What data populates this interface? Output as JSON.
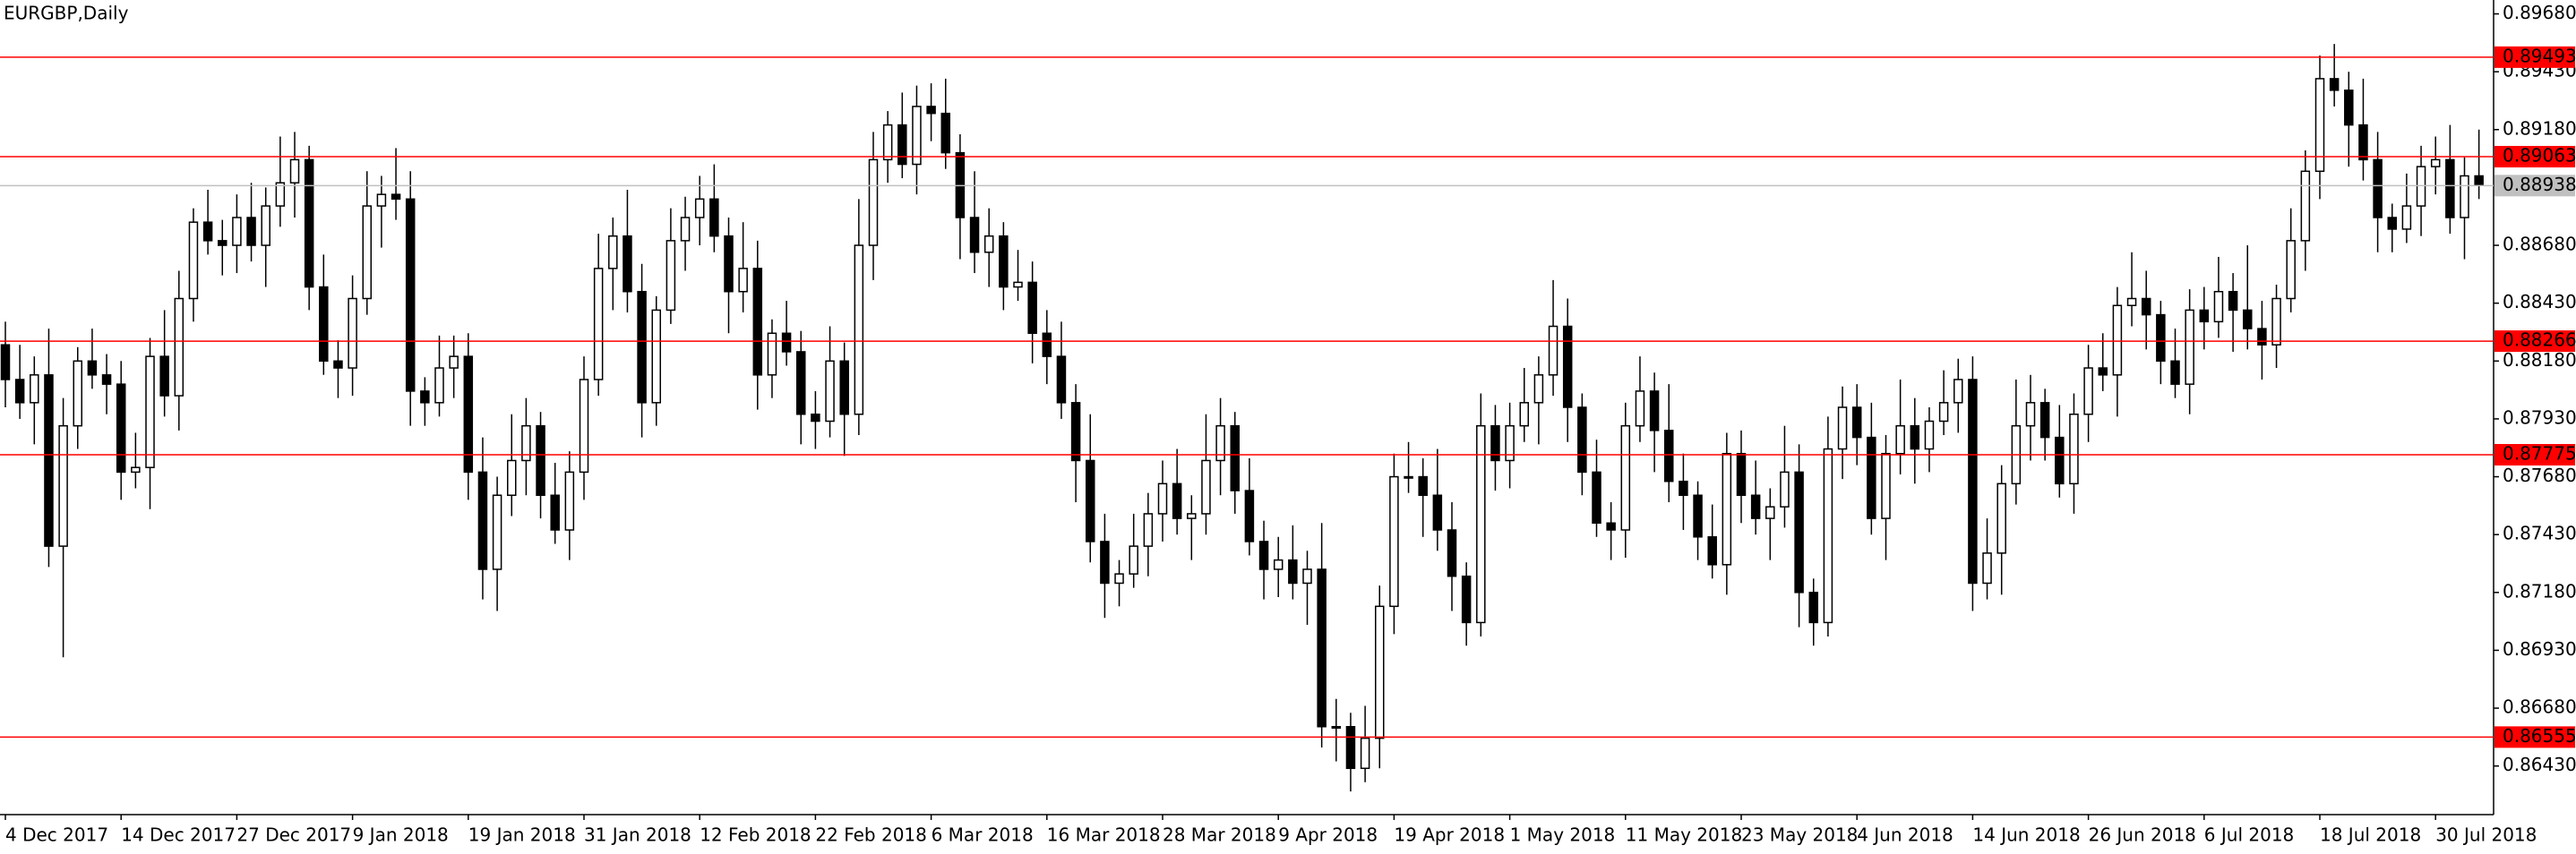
{
  "chart_data": {
    "type": "candlestick",
    "title": "EURGBP,Daily",
    "bull_color": "#ffffff",
    "bear_color": "#000000",
    "level_color": "#ff0000",
    "price_line_color": "#c0c0c0",
    "ylim": [
      0.8622,
      0.8974
    ],
    "yticks": [
      {
        "value": 0.8968,
        "label": "0.89680"
      },
      {
        "value": 0.8943,
        "label": "0.89430"
      },
      {
        "value": 0.8918,
        "label": "0.89180"
      },
      {
        "value": 0.8868,
        "label": "0.88680"
      },
      {
        "value": 0.8843,
        "label": "0.88430"
      },
      {
        "value": 0.8818,
        "label": "0.88180"
      },
      {
        "value": 0.8793,
        "label": "0.87930"
      },
      {
        "value": 0.8768,
        "label": "0.87680"
      },
      {
        "value": 0.8743,
        "label": "0.87430"
      },
      {
        "value": 0.8718,
        "label": "0.87180"
      },
      {
        "value": 0.8693,
        "label": "0.86930"
      },
      {
        "value": 0.8668,
        "label": "0.86680"
      },
      {
        "value": 0.8643,
        "label": "0.86430"
      }
    ],
    "levels": [
      {
        "value": 0.89493,
        "label": "0.89493"
      },
      {
        "value": 0.89063,
        "label": "0.89063"
      },
      {
        "value": 0.88266,
        "label": "0.88266"
      },
      {
        "value": 0.87775,
        "label": "0.87775"
      },
      {
        "value": 0.86555,
        "label": "0.86555"
      }
    ],
    "price_line": {
      "value": 0.88938,
      "label": "0.88938"
    },
    "categories": [
      "4 Dec 2017",
      null,
      null,
      null,
      null,
      null,
      null,
      null,
      "14 Dec 2017",
      null,
      null,
      null,
      null,
      null,
      null,
      null,
      "27 Dec 2017",
      null,
      null,
      null,
      null,
      null,
      null,
      null,
      "9 Jan 2018",
      null,
      null,
      null,
      null,
      null,
      null,
      null,
      "19 Jan 2018",
      null,
      null,
      null,
      null,
      null,
      null,
      null,
      "31 Jan 2018",
      null,
      null,
      null,
      null,
      null,
      null,
      null,
      "12 Feb 2018",
      null,
      null,
      null,
      null,
      null,
      null,
      null,
      "22 Feb 2018",
      null,
      null,
      null,
      null,
      null,
      null,
      null,
      "6 Mar 2018",
      null,
      null,
      null,
      null,
      null,
      null,
      null,
      "16 Mar 2018",
      null,
      null,
      null,
      null,
      null,
      null,
      null,
      "28 Mar 2018",
      null,
      null,
      null,
      null,
      null,
      null,
      null,
      "9 Apr 2018",
      null,
      null,
      null,
      null,
      null,
      null,
      null,
      "19 Apr 2018",
      null,
      null,
      null,
      null,
      null,
      null,
      null,
      "1 May 2018",
      null,
      null,
      null,
      null,
      null,
      null,
      null,
      "11 May 2018",
      null,
      null,
      null,
      null,
      null,
      null,
      null,
      "23 May 2018",
      null,
      null,
      null,
      null,
      null,
      null,
      null,
      "4 Jun 2018",
      null,
      null,
      null,
      null,
      null,
      null,
      null,
      "14 Jun 2018",
      null,
      null,
      null,
      null,
      null,
      null,
      null,
      "26 Jun 2018",
      null,
      null,
      null,
      null,
      null,
      null,
      null,
      "6 Jul 2018",
      null,
      null,
      null,
      null,
      null,
      null,
      null,
      "18 Jul 2018",
      null,
      null,
      null,
      null,
      null,
      null,
      null,
      "30 Jul 2018",
      null,
      null,
      null
    ],
    "candles": [
      [
        0.8825,
        0.8835,
        0.8798,
        0.881
      ],
      [
        0.881,
        0.8825,
        0.8793,
        0.88
      ],
      [
        0.88,
        0.882,
        0.8782,
        0.8812
      ],
      [
        0.8812,
        0.8832,
        0.8729,
        0.8738
      ],
      [
        0.8738,
        0.8802,
        0.869,
        0.879
      ],
      [
        0.879,
        0.8824,
        0.878,
        0.8818
      ],
      [
        0.8818,
        0.8832,
        0.8806,
        0.8812
      ],
      [
        0.8812,
        0.8821,
        0.8795,
        0.8808
      ],
      [
        0.8808,
        0.8818,
        0.8758,
        0.877
      ],
      [
        0.877,
        0.8787,
        0.8763,
        0.8772
      ],
      [
        0.8772,
        0.8828,
        0.8754,
        0.882
      ],
      [
        0.882,
        0.884,
        0.8794,
        0.8803
      ],
      [
        0.8803,
        0.8857,
        0.8788,
        0.8845
      ],
      [
        0.8845,
        0.8884,
        0.8835,
        0.8878
      ],
      [
        0.8878,
        0.8892,
        0.8864,
        0.887
      ],
      [
        0.887,
        0.8879,
        0.8855,
        0.8868
      ],
      [
        0.8868,
        0.889,
        0.8856,
        0.888
      ],
      [
        0.888,
        0.8895,
        0.8861,
        0.8868
      ],
      [
        0.8868,
        0.8893,
        0.885,
        0.8885
      ],
      [
        0.8885,
        0.8915,
        0.8876,
        0.8895
      ],
      [
        0.8895,
        0.8917,
        0.888,
        0.8905
      ],
      [
        0.8905,
        0.8911,
        0.884,
        0.885
      ],
      [
        0.885,
        0.8864,
        0.8812,
        0.8818
      ],
      [
        0.8818,
        0.8827,
        0.8802,
        0.8815
      ],
      [
        0.8815,
        0.8855,
        0.8803,
        0.8845
      ],
      [
        0.8845,
        0.89,
        0.8838,
        0.8885
      ],
      [
        0.8885,
        0.8898,
        0.8867,
        0.889
      ],
      [
        0.889,
        0.891,
        0.8879,
        0.8888
      ],
      [
        0.8888,
        0.89,
        0.879,
        0.8805
      ],
      [
        0.8805,
        0.8811,
        0.879,
        0.88
      ],
      [
        0.88,
        0.8829,
        0.8794,
        0.8815
      ],
      [
        0.8815,
        0.8829,
        0.8802,
        0.882
      ],
      [
        0.882,
        0.883,
        0.8758,
        0.877
      ],
      [
        0.877,
        0.8785,
        0.8715,
        0.8728
      ],
      [
        0.8728,
        0.8768,
        0.871,
        0.876
      ],
      [
        0.876,
        0.8795,
        0.8751,
        0.8775
      ],
      [
        0.8775,
        0.8802,
        0.876,
        0.879
      ],
      [
        0.879,
        0.8796,
        0.875,
        0.876
      ],
      [
        0.876,
        0.8774,
        0.8739,
        0.8745
      ],
      [
        0.8745,
        0.8779,
        0.8732,
        0.877
      ],
      [
        0.877,
        0.882,
        0.8758,
        0.881
      ],
      [
        0.881,
        0.8873,
        0.8803,
        0.8858
      ],
      [
        0.8858,
        0.888,
        0.884,
        0.8872
      ],
      [
        0.8872,
        0.8892,
        0.8839,
        0.8848
      ],
      [
        0.8848,
        0.886,
        0.8785,
        0.88
      ],
      [
        0.88,
        0.8846,
        0.879,
        0.884
      ],
      [
        0.884,
        0.8884,
        0.8834,
        0.887
      ],
      [
        0.887,
        0.8889,
        0.8857,
        0.888
      ],
      [
        0.888,
        0.8898,
        0.8868,
        0.8888
      ],
      [
        0.8888,
        0.8903,
        0.8865,
        0.8872
      ],
      [
        0.8872,
        0.888,
        0.883,
        0.8848
      ],
      [
        0.8848,
        0.8878,
        0.8839,
        0.8858
      ],
      [
        0.8858,
        0.887,
        0.8797,
        0.8812
      ],
      [
        0.8812,
        0.8836,
        0.8802,
        0.883
      ],
      [
        0.883,
        0.8844,
        0.8816,
        0.8822
      ],
      [
        0.8822,
        0.8831,
        0.8782,
        0.8795
      ],
      [
        0.8795,
        0.8805,
        0.878,
        0.8792
      ],
      [
        0.8792,
        0.8833,
        0.8785,
        0.8818
      ],
      [
        0.8818,
        0.8826,
        0.8777,
        0.8795
      ],
      [
        0.8795,
        0.8888,
        0.8786,
        0.8868
      ],
      [
        0.8868,
        0.8917,
        0.8853,
        0.8905
      ],
      [
        0.8905,
        0.8926,
        0.8895,
        0.892
      ],
      [
        0.892,
        0.8934,
        0.8897,
        0.8903
      ],
      [
        0.8903,
        0.8937,
        0.889,
        0.8928
      ],
      [
        0.8928,
        0.8938,
        0.8913,
        0.8925
      ],
      [
        0.8925,
        0.894,
        0.8901,
        0.8908
      ],
      [
        0.8908,
        0.8916,
        0.8862,
        0.888
      ],
      [
        0.888,
        0.89,
        0.8856,
        0.8865
      ],
      [
        0.8865,
        0.8884,
        0.885,
        0.8872
      ],
      [
        0.8872,
        0.8878,
        0.884,
        0.885
      ],
      [
        0.885,
        0.8866,
        0.8844,
        0.8852
      ],
      [
        0.8852,
        0.8861,
        0.8817,
        0.883
      ],
      [
        0.883,
        0.884,
        0.8808,
        0.882
      ],
      [
        0.882,
        0.8835,
        0.8793,
        0.88
      ],
      [
        0.88,
        0.8808,
        0.8757,
        0.8775
      ],
      [
        0.8775,
        0.8795,
        0.8731,
        0.874
      ],
      [
        0.874,
        0.8752,
        0.8707,
        0.8722
      ],
      [
        0.8722,
        0.8732,
        0.8712,
        0.8726
      ],
      [
        0.8726,
        0.8752,
        0.872,
        0.8738
      ],
      [
        0.8738,
        0.8761,
        0.8725,
        0.8752
      ],
      [
        0.8752,
        0.8775,
        0.874,
        0.8765
      ],
      [
        0.8765,
        0.878,
        0.8743,
        0.875
      ],
      [
        0.875,
        0.876,
        0.8732,
        0.8752
      ],
      [
        0.8752,
        0.8795,
        0.8743,
        0.8775
      ],
      [
        0.8775,
        0.8802,
        0.876,
        0.879
      ],
      [
        0.879,
        0.8796,
        0.8752,
        0.8762
      ],
      [
        0.8762,
        0.8776,
        0.8734,
        0.874
      ],
      [
        0.874,
        0.8749,
        0.8715,
        0.8728
      ],
      [
        0.8728,
        0.8742,
        0.8716,
        0.8732
      ],
      [
        0.8732,
        0.8747,
        0.8715,
        0.8722
      ],
      [
        0.8722,
        0.8736,
        0.8704,
        0.8728
      ],
      [
        0.8728,
        0.8748,
        0.8651,
        0.866
      ],
      [
        0.866,
        0.8672,
        0.8645,
        0.866
      ],
      [
        0.866,
        0.8666,
        0.8632,
        0.8642
      ],
      [
        0.8642,
        0.8669,
        0.8636,
        0.8655
      ],
      [
        0.8655,
        0.8721,
        0.8642,
        0.8712
      ],
      [
        0.8712,
        0.8778,
        0.87,
        0.8768
      ],
      [
        0.8768,
        0.8783,
        0.8761,
        0.8768
      ],
      [
        0.8768,
        0.8776,
        0.8742,
        0.876
      ],
      [
        0.876,
        0.878,
        0.8736,
        0.8745
      ],
      [
        0.8745,
        0.8757,
        0.871,
        0.8725
      ],
      [
        0.8725,
        0.8731,
        0.8695,
        0.8705
      ],
      [
        0.8705,
        0.8804,
        0.8699,
        0.879
      ],
      [
        0.879,
        0.8799,
        0.8762,
        0.8775
      ],
      [
        0.8775,
        0.88,
        0.8763,
        0.879
      ],
      [
        0.879,
        0.8815,
        0.8783,
        0.88
      ],
      [
        0.88,
        0.882,
        0.8782,
        0.8812
      ],
      [
        0.8812,
        0.8853,
        0.8803,
        0.8833
      ],
      [
        0.8833,
        0.8845,
        0.8783,
        0.8798
      ],
      [
        0.8798,
        0.8804,
        0.876,
        0.877
      ],
      [
        0.877,
        0.8784,
        0.8742,
        0.8748
      ],
      [
        0.8748,
        0.8757,
        0.8732,
        0.8745
      ],
      [
        0.8745,
        0.88,
        0.8733,
        0.879
      ],
      [
        0.879,
        0.882,
        0.8783,
        0.8805
      ],
      [
        0.8805,
        0.8813,
        0.877,
        0.8788
      ],
      [
        0.8788,
        0.8808,
        0.8757,
        0.8766
      ],
      [
        0.8766,
        0.8778,
        0.8745,
        0.876
      ],
      [
        0.876,
        0.8766,
        0.8732,
        0.8742
      ],
      [
        0.8742,
        0.8756,
        0.8724,
        0.873
      ],
      [
        0.873,
        0.8787,
        0.8717,
        0.8778
      ],
      [
        0.8778,
        0.8788,
        0.8748,
        0.876
      ],
      [
        0.876,
        0.8775,
        0.8743,
        0.875
      ],
      [
        0.875,
        0.8763,
        0.8732,
        0.8755
      ],
      [
        0.8755,
        0.879,
        0.8746,
        0.877
      ],
      [
        0.877,
        0.8782,
        0.8703,
        0.8718
      ],
      [
        0.8718,
        0.8724,
        0.8695,
        0.8705
      ],
      [
        0.8705,
        0.8794,
        0.8699,
        0.878
      ],
      [
        0.878,
        0.8807,
        0.8767,
        0.8798
      ],
      [
        0.8798,
        0.8808,
        0.8773,
        0.8785
      ],
      [
        0.8785,
        0.88,
        0.8743,
        0.875
      ],
      [
        0.875,
        0.8786,
        0.8732,
        0.8778
      ],
      [
        0.8778,
        0.881,
        0.8769,
        0.879
      ],
      [
        0.879,
        0.8802,
        0.8765,
        0.878
      ],
      [
        0.878,
        0.8798,
        0.877,
        0.8792
      ],
      [
        0.8792,
        0.8814,
        0.8786,
        0.88
      ],
      [
        0.88,
        0.8819,
        0.8787,
        0.881
      ],
      [
        0.881,
        0.882,
        0.871,
        0.8722
      ],
      [
        0.8722,
        0.875,
        0.8715,
        0.8735
      ],
      [
        0.8735,
        0.8773,
        0.8717,
        0.8765
      ],
      [
        0.8765,
        0.881,
        0.8756,
        0.879
      ],
      [
        0.879,
        0.8812,
        0.8775,
        0.88
      ],
      [
        0.88,
        0.8806,
        0.8775,
        0.8785
      ],
      [
        0.8785,
        0.8799,
        0.8759,
        0.8765
      ],
      [
        0.8765,
        0.8804,
        0.8752,
        0.8795
      ],
      [
        0.8795,
        0.8825,
        0.8783,
        0.8815
      ],
      [
        0.8815,
        0.883,
        0.8805,
        0.8812
      ],
      [
        0.8812,
        0.885,
        0.8794,
        0.8842
      ],
      [
        0.8842,
        0.8865,
        0.8833,
        0.8845
      ],
      [
        0.8845,
        0.8857,
        0.8823,
        0.8838
      ],
      [
        0.8838,
        0.8844,
        0.8808,
        0.8818
      ],
      [
        0.8818,
        0.8832,
        0.8802,
        0.8808
      ],
      [
        0.8808,
        0.8849,
        0.8795,
        0.884
      ],
      [
        0.884,
        0.885,
        0.8823,
        0.8835
      ],
      [
        0.8835,
        0.8863,
        0.8828,
        0.8848
      ],
      [
        0.8848,
        0.8856,
        0.8822,
        0.884
      ],
      [
        0.884,
        0.8868,
        0.8823,
        0.8832
      ],
      [
        0.8832,
        0.8844,
        0.881,
        0.8825
      ],
      [
        0.8825,
        0.8851,
        0.8815,
        0.8845
      ],
      [
        0.8845,
        0.8884,
        0.8839,
        0.887
      ],
      [
        0.887,
        0.8909,
        0.8857,
        0.89
      ],
      [
        0.89,
        0.895,
        0.8888,
        0.894
      ],
      [
        0.894,
        0.8955,
        0.8928,
        0.8935
      ],
      [
        0.8935,
        0.8943,
        0.8902,
        0.892
      ],
      [
        0.892,
        0.894,
        0.8896,
        0.8905
      ],
      [
        0.8905,
        0.8917,
        0.8865,
        0.888
      ],
      [
        0.888,
        0.8886,
        0.8865,
        0.8875
      ],
      [
        0.8875,
        0.8899,
        0.8869,
        0.8885
      ],
      [
        0.8885,
        0.8911,
        0.8872,
        0.8902
      ],
      [
        0.8902,
        0.8915,
        0.889,
        0.8905
      ],
      [
        0.8905,
        0.892,
        0.8873,
        0.888
      ],
      [
        0.888,
        0.8906,
        0.8862,
        0.8898
      ],
      [
        0.8898,
        0.8918,
        0.8888,
        0.8894
      ]
    ]
  }
}
